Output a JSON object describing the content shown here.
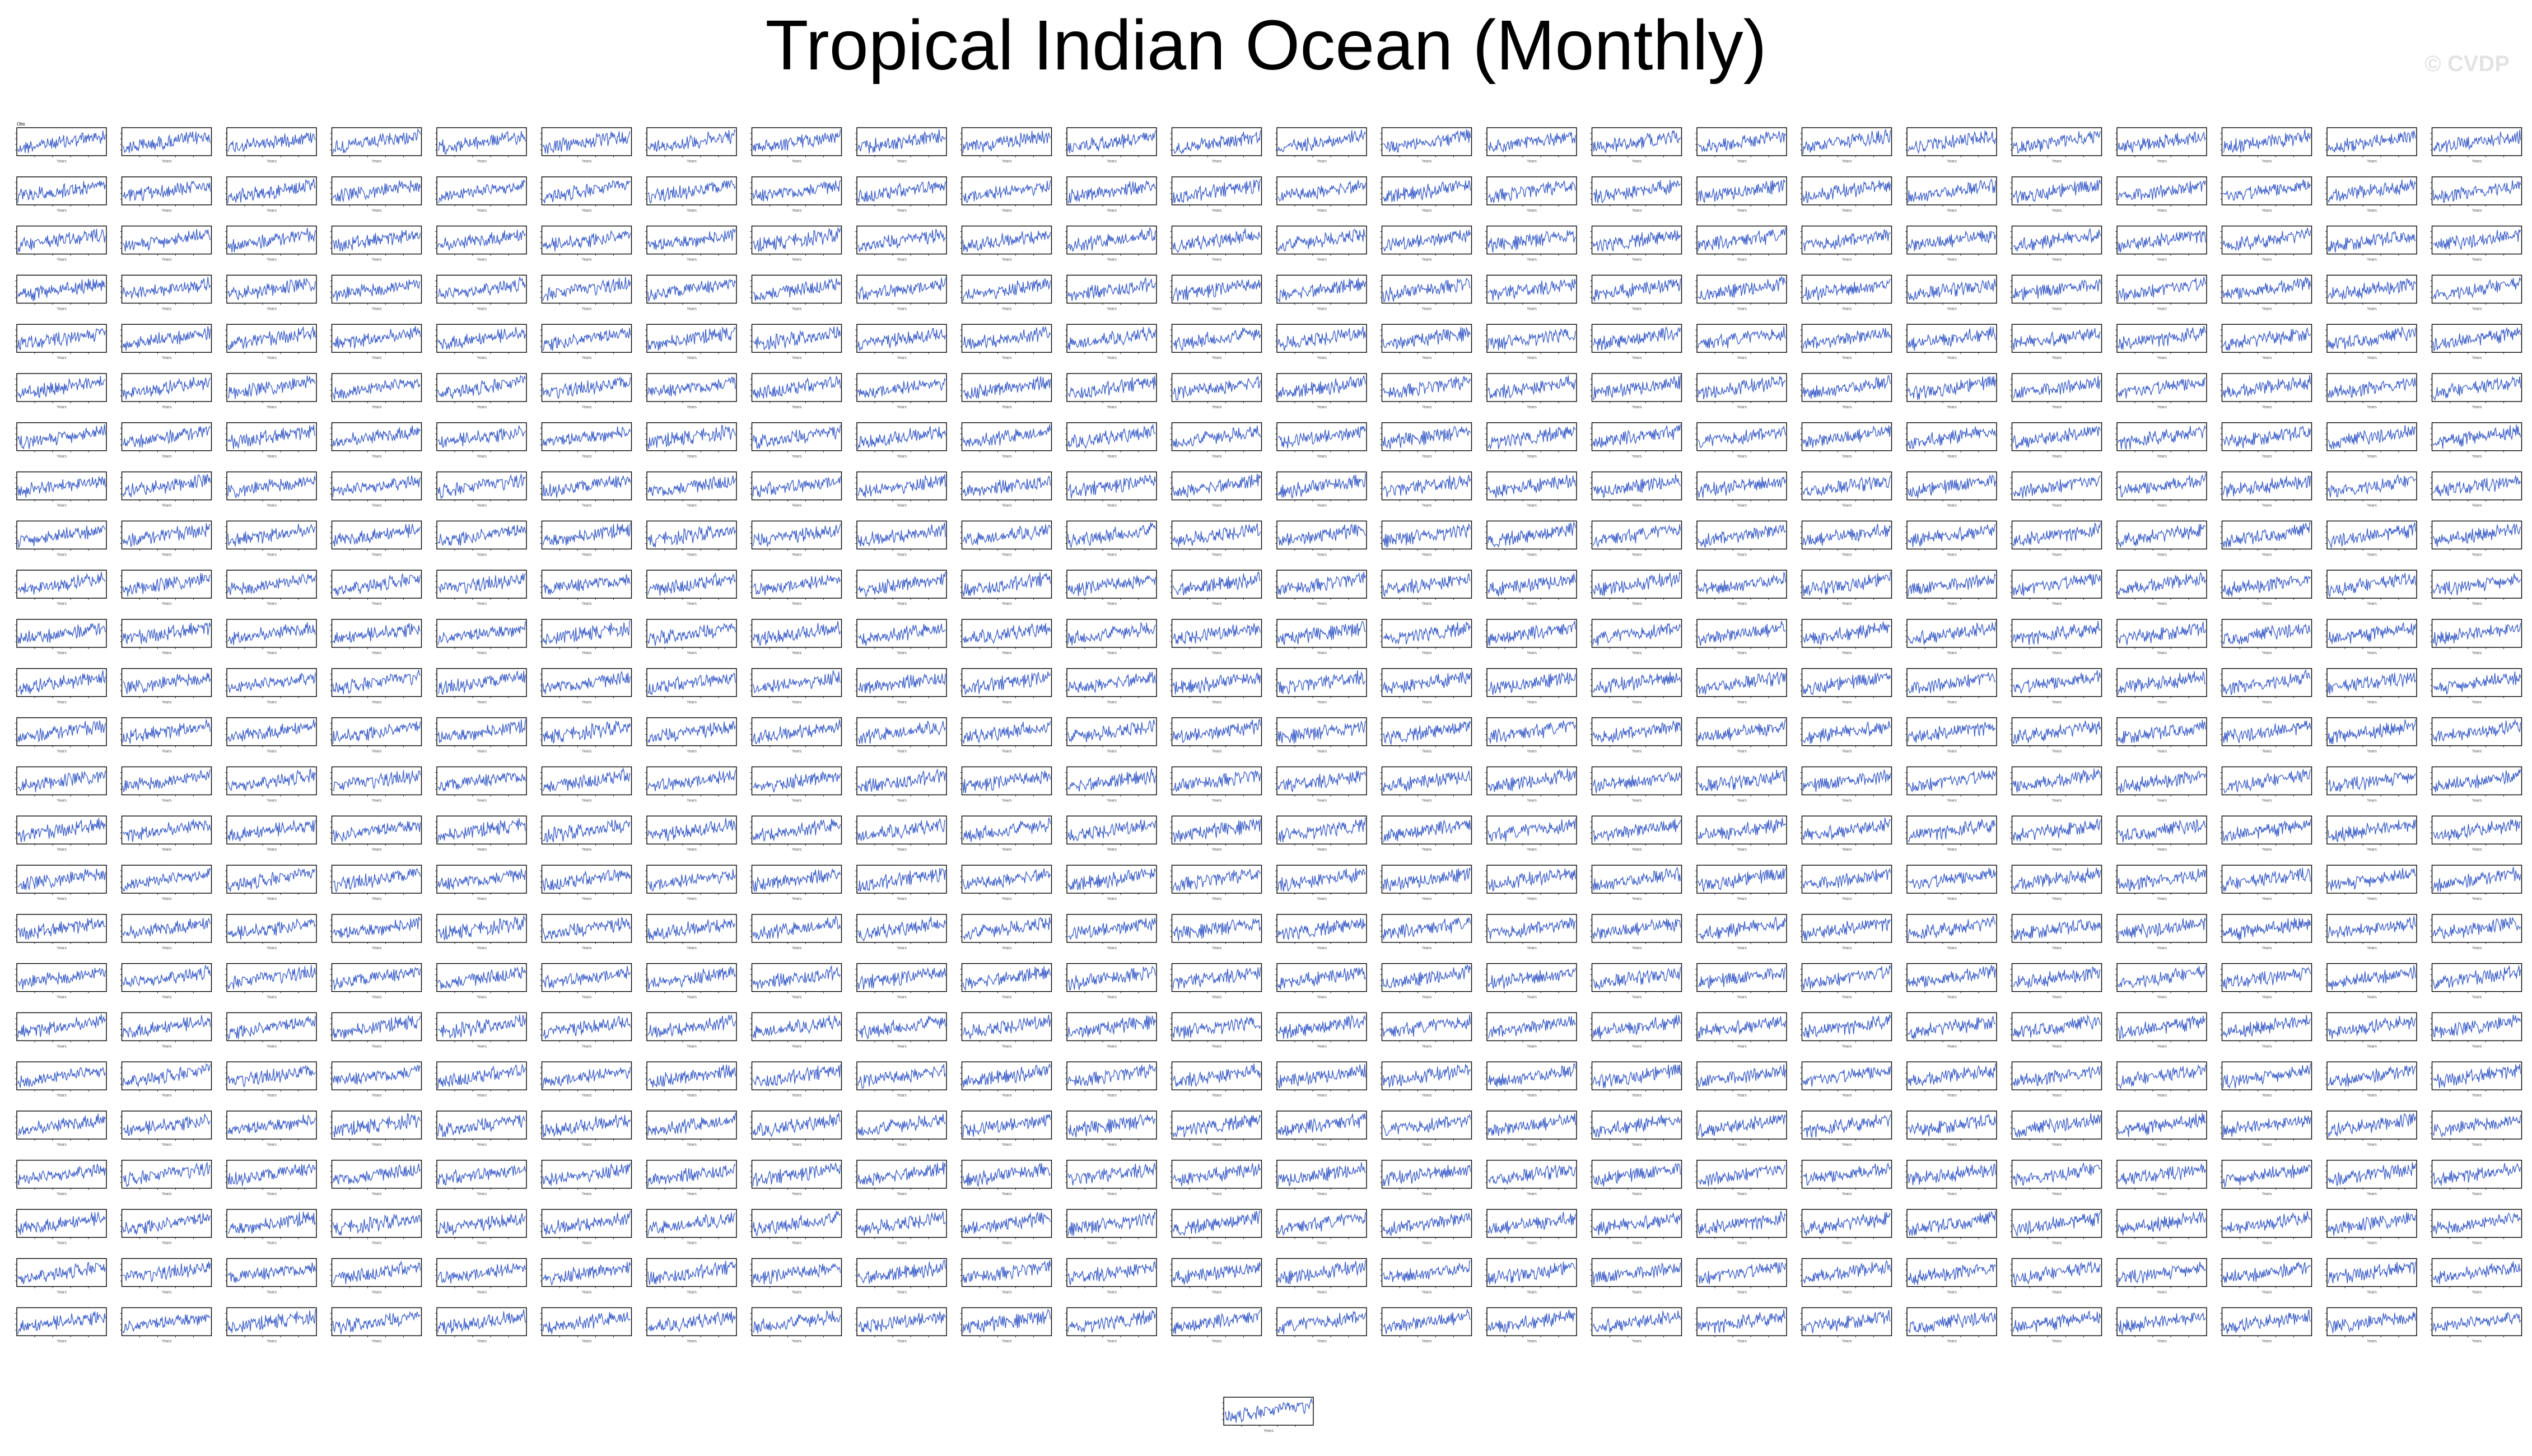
{
  "page": {
    "title": "Tropical Indian Ocean (Monthly)",
    "watermark": "© CVDP"
  },
  "colors": {
    "series": "#3c5ec8",
    "frame": "#000000",
    "subtitle": "#2a9d8f"
  },
  "chart_data": {
    "type": "line",
    "layout": "small-multiples",
    "panel_count": 601,
    "grid_columns": 24,
    "grid_rows": 25,
    "extra_panel_centered": true,
    "description_of_series": "monthly anomaly time series, one per panel, all with upward trend",
    "first_panel_label": "Obs",
    "xlabel": "Years",
    "trend": "increasing",
    "noise": "high month-to-month variability"
  }
}
